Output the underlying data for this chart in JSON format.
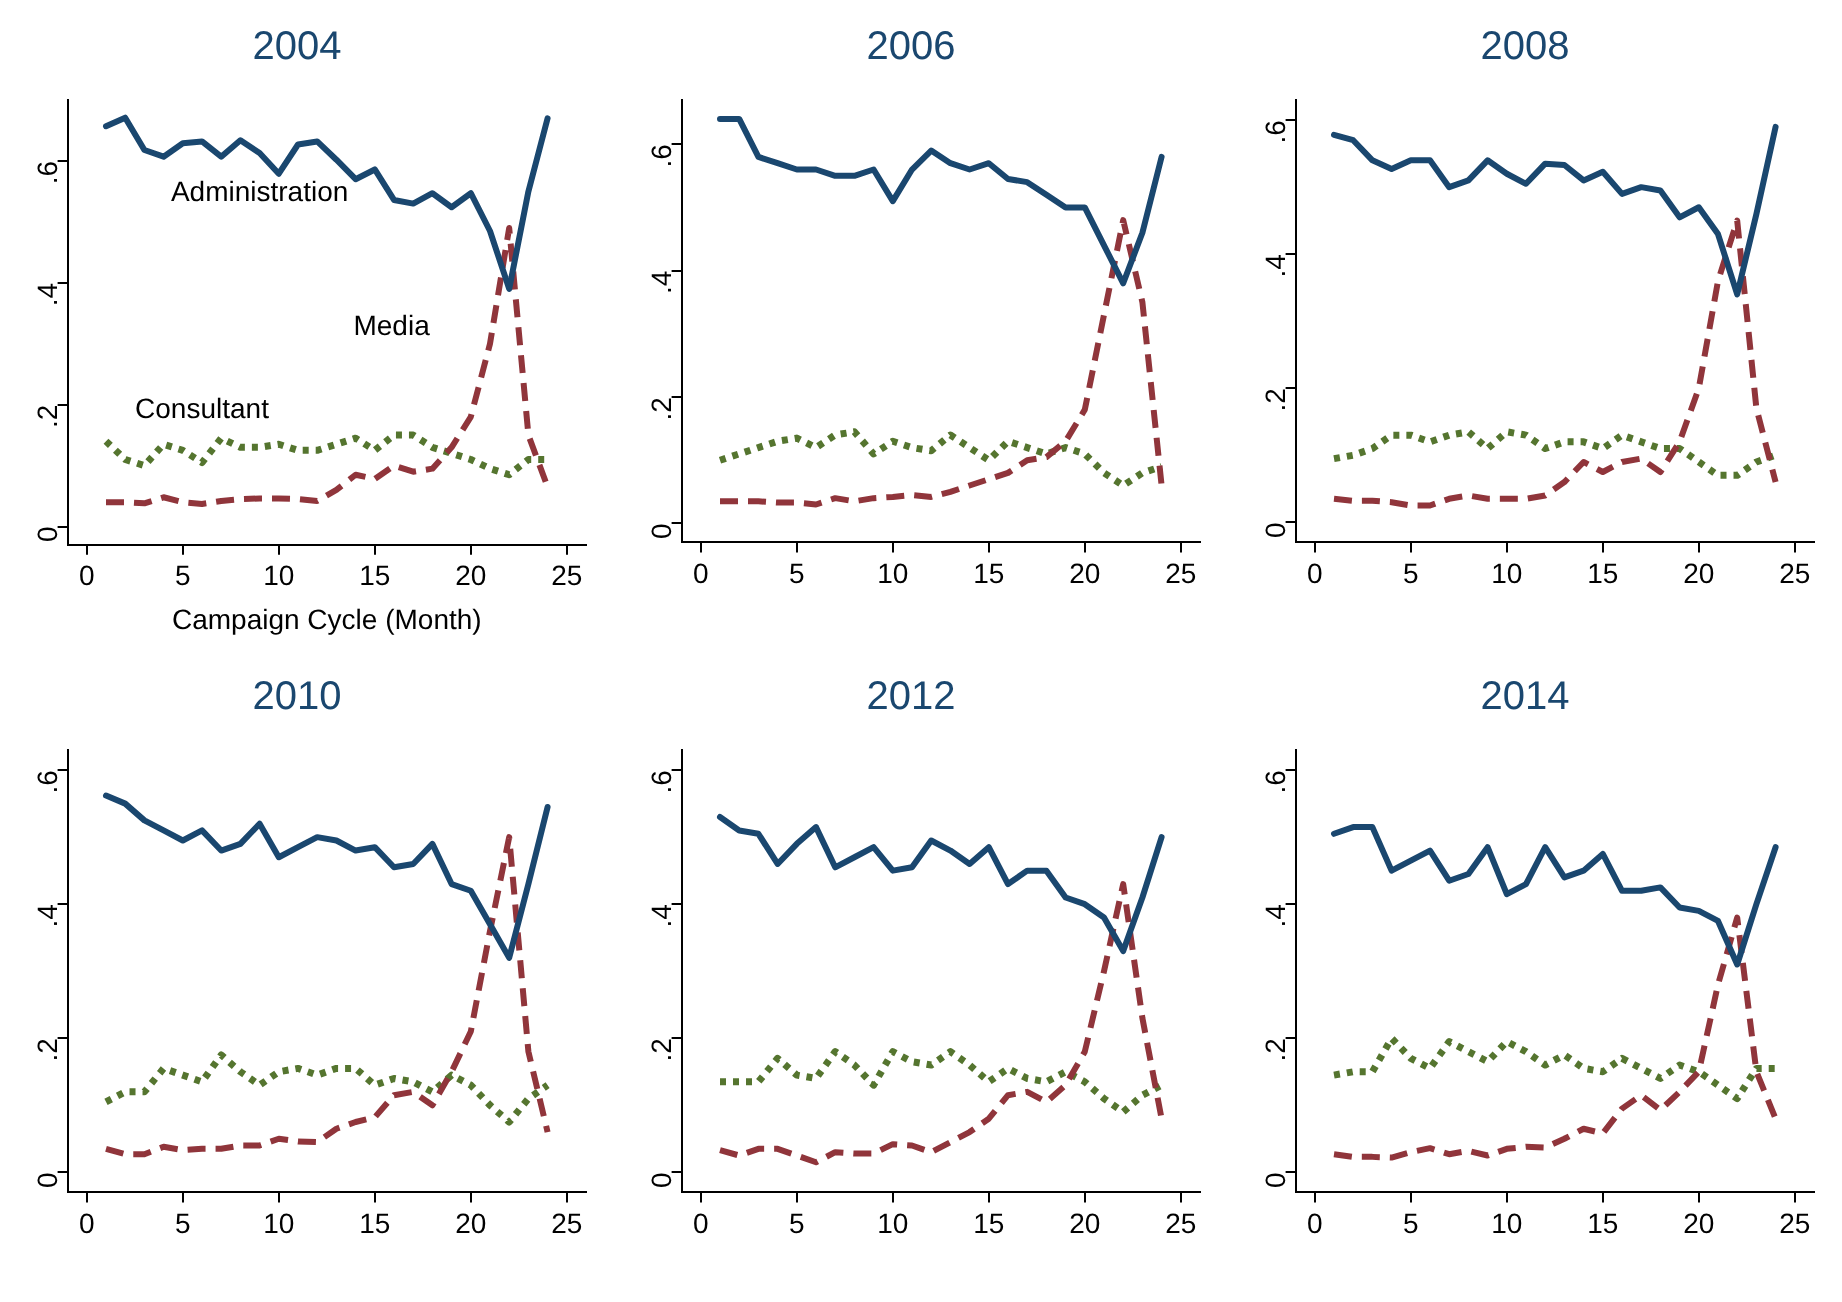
{
  "chart_data": [
    {
      "type": "line",
      "title": "2004",
      "xlabel": "Campaign Cycle (Month)",
      "x": [
        1,
        2,
        3,
        4,
        5,
        6,
        7,
        8,
        9,
        10,
        11,
        12,
        13,
        14,
        15,
        16,
        17,
        18,
        19,
        20,
        21,
        22,
        23,
        24
      ],
      "xlim": [
        -1,
        26
      ],
      "xticks": [
        0,
        5,
        10,
        15,
        20,
        25
      ],
      "ylim": [
        -0.03,
        0.7
      ],
      "yticks": [
        {
          "value": 0,
          "label": "0"
        },
        {
          "value": 0.2,
          "label": ".2"
        },
        {
          "value": 0.4,
          "label": ".4"
        },
        {
          "value": 0.6,
          "label": ".6"
        }
      ],
      "grid": false,
      "legend": false,
      "marker": "none",
      "series": [
        {
          "name": "Administration",
          "color": "#1a476f",
          "line_style": "solid",
          "values": [
            0.657,
            0.671,
            0.618,
            0.607,
            0.629,
            0.632,
            0.607,
            0.634,
            0.613,
            0.579,
            0.627,
            0.632,
            0.602,
            0.57,
            0.586,
            0.536,
            0.53,
            0.547,
            0.524,
            0.547,
            0.485,
            0.39,
            0.55,
            0.67
          ]
        },
        {
          "name": "Media",
          "color": "#90353b",
          "line_style": "dashed",
          "values": [
            0.04,
            0.04,
            0.038,
            0.048,
            0.04,
            0.037,
            0.042,
            0.045,
            0.046,
            0.046,
            0.045,
            0.042,
            0.06,
            0.085,
            0.078,
            0.1,
            0.09,
            0.095,
            0.13,
            0.18,
            0.3,
            0.49,
            0.15,
            0.065
          ]
        },
        {
          "name": "Consultant",
          "color": "#55752f",
          "line_style": "dotted",
          "values": [
            0.14,
            0.11,
            0.1,
            0.135,
            0.125,
            0.105,
            0.145,
            0.13,
            0.13,
            0.135,
            0.125,
            0.125,
            0.135,
            0.145,
            0.125,
            0.15,
            0.15,
            0.13,
            0.12,
            0.11,
            0.095,
            0.085,
            0.11,
            0.11
          ]
        }
      ]
    },
    {
      "type": "line",
      "title": "2006",
      "x": [
        1,
        2,
        3,
        4,
        5,
        6,
        7,
        8,
        9,
        10,
        11,
        12,
        13,
        14,
        15,
        16,
        17,
        18,
        19,
        20,
        21,
        22,
        23,
        24
      ],
      "xlim": [
        -1,
        26
      ],
      "xticks": [
        0,
        5,
        10,
        15,
        20,
        25
      ],
      "ylim": [
        -0.03,
        0.67
      ],
      "yticks": [
        {
          "value": 0,
          "label": "0"
        },
        {
          "value": 0.2,
          "label": ".2"
        },
        {
          "value": 0.4,
          "label": ".4"
        },
        {
          "value": 0.6,
          "label": ".6"
        }
      ],
      "grid": false,
      "legend": false,
      "marker": "none",
      "series": [
        {
          "color": "#1a476f",
          "line_style": "solid",
          "values": [
            0.64,
            0.64,
            0.58,
            0.57,
            0.56,
            0.56,
            0.55,
            0.55,
            0.56,
            0.51,
            0.56,
            0.59,
            0.57,
            0.56,
            0.57,
            0.545,
            0.54,
            0.52,
            0.5,
            0.5,
            0.44,
            0.38,
            0.46,
            0.58
          ]
        },
        {
          "color": "#90353b",
          "line_style": "dashed",
          "values": [
            0.035,
            0.035,
            0.035,
            0.033,
            0.033,
            0.03,
            0.04,
            0.035,
            0.04,
            0.042,
            0.045,
            0.042,
            0.05,
            0.06,
            0.07,
            0.08,
            0.1,
            0.105,
            0.13,
            0.18,
            0.33,
            0.48,
            0.35,
            0.06
          ]
        },
        {
          "color": "#55752f",
          "line_style": "dotted",
          "values": [
            0.1,
            0.11,
            0.12,
            0.13,
            0.135,
            0.12,
            0.14,
            0.145,
            0.11,
            0.13,
            0.12,
            0.115,
            0.14,
            0.12,
            0.1,
            0.13,
            0.12,
            0.11,
            0.12,
            0.11,
            0.08,
            0.06,
            0.08,
            0.09
          ]
        }
      ]
    },
    {
      "type": "line",
      "title": "2008",
      "x": [
        1,
        2,
        3,
        4,
        5,
        6,
        7,
        8,
        9,
        10,
        11,
        12,
        13,
        14,
        15,
        16,
        17,
        18,
        19,
        20,
        21,
        22,
        23,
        24
      ],
      "xlim": [
        -1,
        26
      ],
      "xticks": [
        0,
        5,
        10,
        15,
        20,
        25
      ],
      "ylim": [
        -0.03,
        0.63
      ],
      "yticks": [
        {
          "value": 0,
          "label": "0"
        },
        {
          "value": 0.2,
          "label": ".2"
        },
        {
          "value": 0.4,
          "label": ".4"
        },
        {
          "value": 0.6,
          "label": ".6"
        }
      ],
      "grid": false,
      "legend": false,
      "marker": "none",
      "series": [
        {
          "color": "#1a476f",
          "line_style": "solid",
          "values": [
            0.578,
            0.57,
            0.54,
            0.527,
            0.54,
            0.54,
            0.5,
            0.51,
            0.54,
            0.52,
            0.505,
            0.535,
            0.533,
            0.51,
            0.523,
            0.49,
            0.5,
            0.495,
            0.455,
            0.47,
            0.43,
            0.34,
            0.46,
            0.59
          ]
        },
        {
          "color": "#90353b",
          "line_style": "dashed",
          "values": [
            0.035,
            0.032,
            0.032,
            0.03,
            0.025,
            0.025,
            0.035,
            0.04,
            0.035,
            0.035,
            0.035,
            0.04,
            0.06,
            0.09,
            0.075,
            0.09,
            0.095,
            0.075,
            0.12,
            0.2,
            0.36,
            0.45,
            0.17,
            0.06
          ]
        },
        {
          "color": "#55752f",
          "line_style": "dotted",
          "values": [
            0.095,
            0.1,
            0.11,
            0.13,
            0.13,
            0.12,
            0.13,
            0.135,
            0.11,
            0.135,
            0.13,
            0.11,
            0.12,
            0.12,
            0.11,
            0.13,
            0.12,
            0.11,
            0.11,
            0.09,
            0.07,
            0.07,
            0.09,
            0.1
          ]
        }
      ]
    },
    {
      "type": "line",
      "title": "2010",
      "x": [
        1,
        2,
        3,
        4,
        5,
        6,
        7,
        8,
        9,
        10,
        11,
        12,
        13,
        14,
        15,
        16,
        17,
        18,
        19,
        20,
        21,
        22,
        23,
        24
      ],
      "xlim": [
        -1,
        26
      ],
      "xticks": [
        0,
        5,
        10,
        15,
        20,
        25
      ],
      "ylim": [
        -0.03,
        0.63
      ],
      "yticks": [
        {
          "value": 0,
          "label": "0"
        },
        {
          "value": 0.2,
          "label": ".2"
        },
        {
          "value": 0.4,
          "label": ".4"
        },
        {
          "value": 0.6,
          "label": ".6"
        }
      ],
      "grid": false,
      "legend": false,
      "marker": "none",
      "series": [
        {
          "color": "#1a476f",
          "line_style": "solid",
          "values": [
            0.562,
            0.55,
            0.525,
            0.51,
            0.495,
            0.51,
            0.48,
            0.49,
            0.52,
            0.47,
            0.485,
            0.5,
            0.495,
            0.48,
            0.485,
            0.455,
            0.46,
            0.49,
            0.43,
            0.42,
            0.37,
            0.32,
            0.43,
            0.545
          ]
        },
        {
          "color": "#90353b",
          "line_style": "dashed",
          "values": [
            0.035,
            0.027,
            0.027,
            0.038,
            0.033,
            0.035,
            0.035,
            0.04,
            0.04,
            0.05,
            0.046,
            0.045,
            0.065,
            0.075,
            0.082,
            0.115,
            0.12,
            0.1,
            0.15,
            0.21,
            0.36,
            0.5,
            0.18,
            0.06
          ]
        },
        {
          "color": "#55752f",
          "line_style": "dotted",
          "values": [
            0.105,
            0.12,
            0.12,
            0.155,
            0.145,
            0.135,
            0.175,
            0.15,
            0.13,
            0.15,
            0.155,
            0.145,
            0.155,
            0.155,
            0.13,
            0.14,
            0.135,
            0.12,
            0.145,
            0.13,
            0.1,
            0.075,
            0.11,
            0.13
          ]
        }
      ]
    },
    {
      "type": "line",
      "title": "2012",
      "x": [
        1,
        2,
        3,
        4,
        5,
        6,
        7,
        8,
        9,
        10,
        11,
        12,
        13,
        14,
        15,
        16,
        17,
        18,
        19,
        20,
        21,
        22,
        23,
        24
      ],
      "xlim": [
        -1,
        26
      ],
      "xticks": [
        0,
        5,
        10,
        15,
        20,
        25
      ],
      "ylim": [
        -0.03,
        0.63
      ],
      "yticks": [
        {
          "value": 0,
          "label": "0"
        },
        {
          "value": 0.2,
          "label": ".2"
        },
        {
          "value": 0.4,
          "label": ".4"
        },
        {
          "value": 0.6,
          "label": ".6"
        }
      ],
      "grid": false,
      "legend": false,
      "marker": "none",
      "series": [
        {
          "color": "#1a476f",
          "line_style": "solid",
          "values": [
            0.53,
            0.51,
            0.505,
            0.46,
            0.49,
            0.515,
            0.455,
            0.47,
            0.485,
            0.45,
            0.455,
            0.495,
            0.48,
            0.46,
            0.485,
            0.43,
            0.45,
            0.45,
            0.41,
            0.4,
            0.38,
            0.33,
            0.41,
            0.5
          ]
        },
        {
          "color": "#90353b",
          "line_style": "dashed",
          "values": [
            0.033,
            0.025,
            0.035,
            0.035,
            0.025,
            0.015,
            0.03,
            0.028,
            0.028,
            0.042,
            0.04,
            0.03,
            0.045,
            0.06,
            0.08,
            0.115,
            0.12,
            0.105,
            0.13,
            0.18,
            0.3,
            0.43,
            0.23,
            0.08
          ]
        },
        {
          "color": "#55752f",
          "line_style": "dotted",
          "values": [
            0.135,
            0.135,
            0.135,
            0.17,
            0.145,
            0.14,
            0.18,
            0.16,
            0.13,
            0.18,
            0.165,
            0.16,
            0.18,
            0.16,
            0.135,
            0.155,
            0.14,
            0.135,
            0.15,
            0.135,
            0.11,
            0.09,
            0.115,
            0.13
          ]
        }
      ]
    },
    {
      "type": "line",
      "title": "2014",
      "x": [
        1,
        2,
        3,
        4,
        5,
        6,
        7,
        8,
        9,
        10,
        11,
        12,
        13,
        14,
        15,
        16,
        17,
        18,
        19,
        20,
        21,
        22,
        23,
        24
      ],
      "xlim": [
        -1,
        26
      ],
      "xticks": [
        0,
        5,
        10,
        15,
        20,
        25
      ],
      "ylim": [
        -0.03,
        0.63
      ],
      "yticks": [
        {
          "value": 0,
          "label": "0"
        },
        {
          "value": 0.2,
          "label": ".2"
        },
        {
          "value": 0.4,
          "label": ".4"
        },
        {
          "value": 0.6,
          "label": ".6"
        }
      ],
      "grid": false,
      "legend": false,
      "marker": "none",
      "series": [
        {
          "color": "#1a476f",
          "line_style": "solid",
          "values": [
            0.505,
            0.515,
            0.515,
            0.45,
            0.465,
            0.48,
            0.435,
            0.445,
            0.485,
            0.415,
            0.43,
            0.485,
            0.44,
            0.45,
            0.475,
            0.42,
            0.42,
            0.425,
            0.395,
            0.39,
            0.375,
            0.31,
            0.4,
            0.485
          ]
        },
        {
          "color": "#90353b",
          "line_style": "dashed",
          "values": [
            0.027,
            0.023,
            0.023,
            0.022,
            0.03,
            0.036,
            0.027,
            0.032,
            0.025,
            0.035,
            0.038,
            0.037,
            0.05,
            0.065,
            0.058,
            0.095,
            0.115,
            0.093,
            0.12,
            0.15,
            0.28,
            0.38,
            0.15,
            0.08
          ]
        },
        {
          "color": "#55752f",
          "line_style": "dotted",
          "values": [
            0.145,
            0.15,
            0.15,
            0.2,
            0.17,
            0.155,
            0.195,
            0.18,
            0.165,
            0.195,
            0.18,
            0.16,
            0.175,
            0.155,
            0.15,
            0.17,
            0.155,
            0.14,
            0.16,
            0.15,
            0.13,
            0.11,
            0.155,
            0.155
          ]
        }
      ]
    }
  ]
}
